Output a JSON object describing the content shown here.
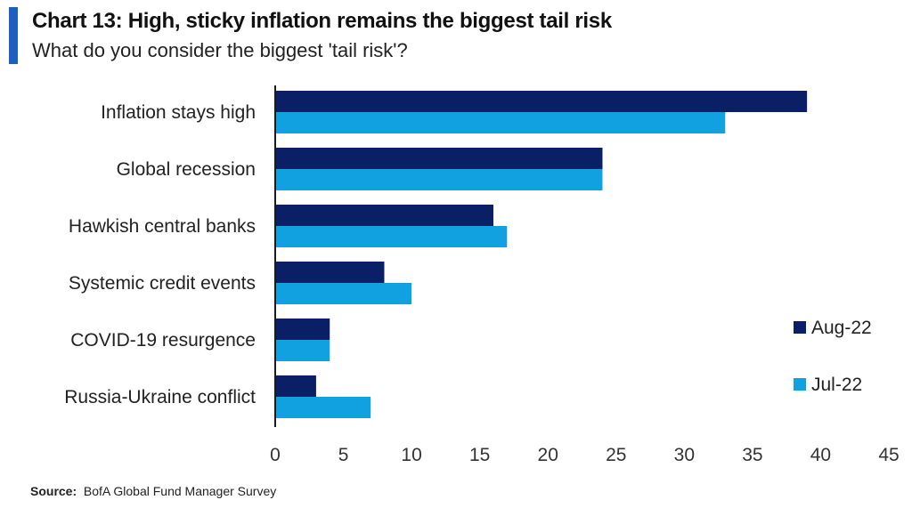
{
  "header": {
    "title": "Chart 13: High, sticky inflation remains the biggest tail risk",
    "subtitle": "What do you consider the biggest 'tail risk'?"
  },
  "footer": {
    "source_label": "Source:",
    "source_text": "BofA Global Fund Manager Survey"
  },
  "colors": {
    "accent": "#1f5fbf",
    "aug22": "#0b1f66",
    "jul22": "#12a1e0",
    "axis": "#1a1a1a"
  },
  "chart_data": {
    "type": "bar",
    "orientation": "horizontal",
    "title": "Chart 13: High, sticky inflation remains the biggest tail risk",
    "subtitle": "What do you consider the biggest 'tail risk'?",
    "categories": [
      "Inflation stays high",
      "Global recession",
      "Hawkish central banks",
      "Systemic credit events",
      "COVID-19 resurgence",
      "Russia-Ukraine conflict"
    ],
    "series": [
      {
        "name": "Aug-22",
        "values": [
          39,
          24,
          16,
          8,
          4,
          3
        ]
      },
      {
        "name": "Jul-22",
        "values": [
          33,
          24,
          17,
          10,
          4,
          7
        ]
      }
    ],
    "xlim": [
      0,
      45
    ],
    "xticks": [
      0,
      5,
      10,
      15,
      20,
      25,
      30,
      35,
      40,
      45
    ],
    "grid": false,
    "legend_position": "right"
  }
}
